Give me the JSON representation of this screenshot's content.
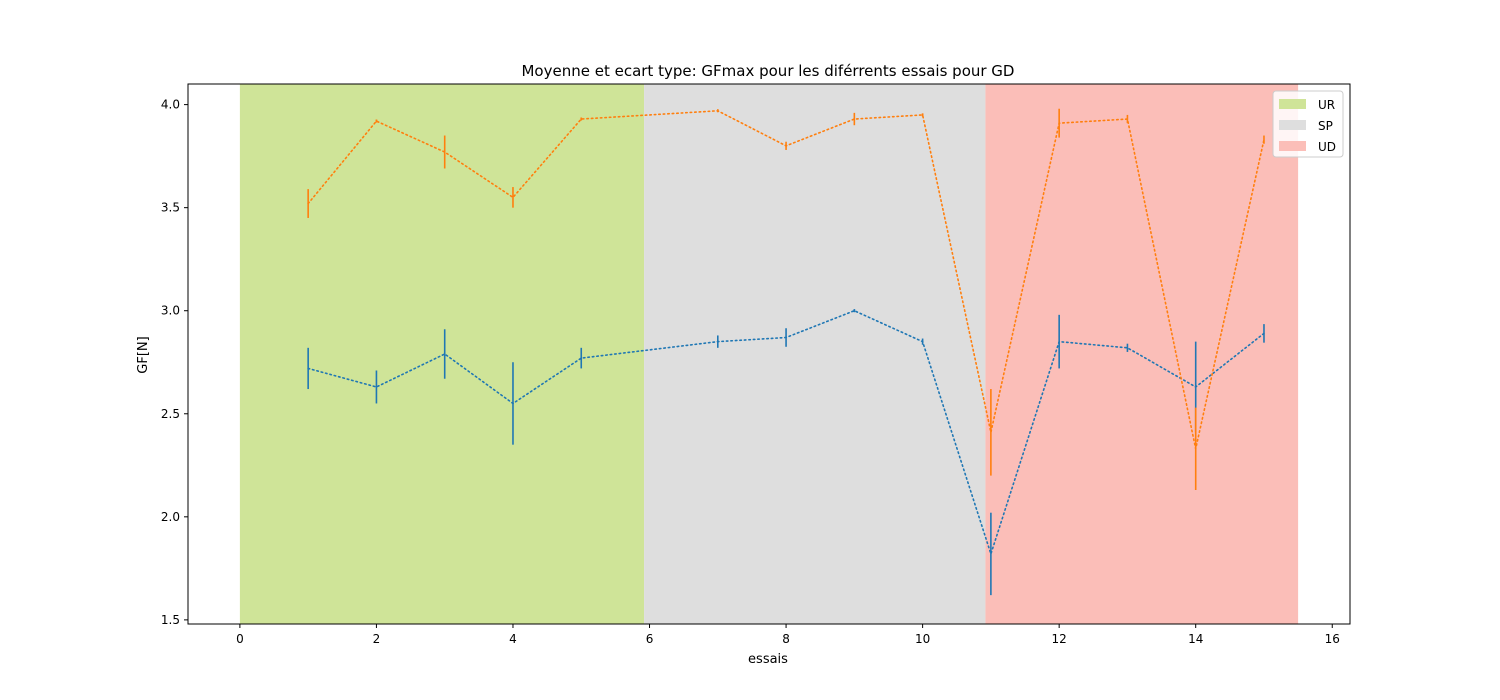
{
  "chart_data": {
    "type": "line",
    "title": "Moyenne et ecart type: GFmax pour les diférrents essais pour GD",
    "xlabel": "essais",
    "ylabel": "GF[N]",
    "xlim": [
      -0.76,
      16.26
    ],
    "ylim": [
      1.48,
      4.1
    ],
    "xticks": [
      0,
      2,
      4,
      6,
      8,
      10,
      12,
      14,
      16
    ],
    "xtick_labels": [
      "0",
      "2",
      "4",
      "6",
      "8",
      "10",
      "12",
      "14",
      "16"
    ],
    "yticks": [
      1.5,
      2.0,
      2.5,
      3.0,
      3.5,
      4.0
    ],
    "ytick_labels": [
      "1.5",
      "2.0",
      "2.5",
      "3.0",
      "3.5",
      "4.0"
    ],
    "grid": false,
    "legend_position": "top-right",
    "regions": [
      {
        "label": "UR",
        "x_start": 0,
        "x_end": 5.92,
        "color": "#cfe498"
      },
      {
        "label": "SP",
        "x_start": 5.92,
        "x_end": 10.92,
        "color": "#dedede"
      },
      {
        "label": "UD",
        "x_start": 10.92,
        "x_end": 15.5,
        "color": "#fbbeb8"
      }
    ],
    "series": [
      {
        "color": "#1f77b4",
        "linestyle": "dotted",
        "x": [
          1,
          2,
          3,
          4,
          5,
          7,
          8,
          9,
          10,
          11,
          12,
          13,
          14,
          15
        ],
        "y": [
          2.72,
          2.63,
          2.79,
          2.55,
          2.77,
          2.85,
          2.87,
          3.0,
          2.85,
          1.82,
          2.85,
          2.82,
          2.63,
          2.89
        ],
        "err": [
          0.1,
          0.08,
          0.12,
          0.2,
          0.05,
          0.03,
          0.045,
          0.005,
          0.015,
          0.2,
          0.13,
          0.02,
          0.22,
          0.045
        ]
      },
      {
        "color": "#ff7f0e",
        "linestyle": "dotted",
        "x": [
          1,
          2,
          3,
          4,
          5,
          7,
          8,
          9,
          10,
          11,
          12,
          13,
          14,
          15
        ],
        "y": [
          3.52,
          3.92,
          3.77,
          3.55,
          3.93,
          3.97,
          3.8,
          3.93,
          3.95,
          2.41,
          3.91,
          3.93,
          2.33,
          3.83
        ],
        "err": [
          0.07,
          0.005,
          0.08,
          0.05,
          0.005,
          0.005,
          0.02,
          0.03,
          0.005,
          0.21,
          0.07,
          0.02,
          0.2,
          0.02
        ]
      }
    ]
  }
}
